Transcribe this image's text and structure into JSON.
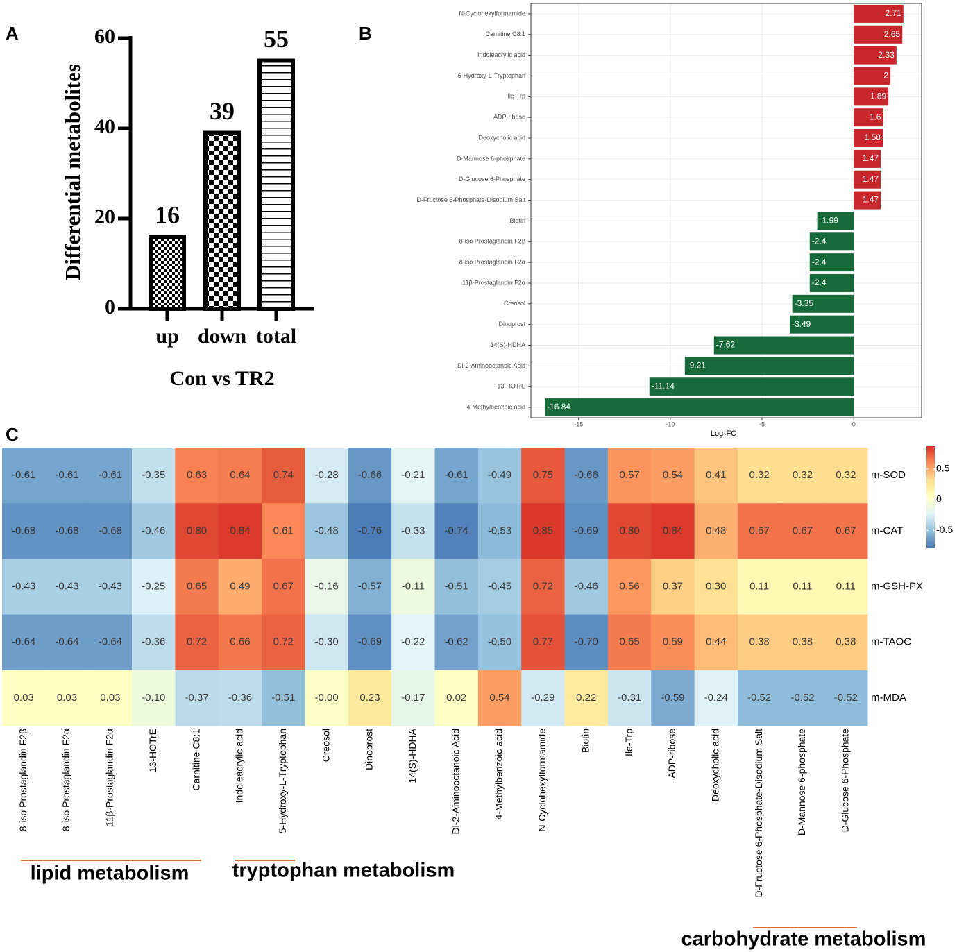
{
  "chart_data": [
    {
      "type": "bar",
      "panel": "A",
      "ylabel": "Differential metabolites",
      "xlabel": "Con vs TR2",
      "categories": [
        "up",
        "down",
        "total"
      ],
      "values": [
        16,
        39,
        55
      ],
      "color": "#000000",
      "ylim": [
        0,
        60
      ],
      "yticks": [
        0,
        20,
        40,
        60
      ]
    },
    {
      "type": "hbar",
      "panel": "B",
      "xlabel": "Log₂FC",
      "categories": [
        "N-Cyclohexylformamide",
        "Carnitine C8:1",
        "Indoleacrylic acid",
        "5-Hydroxy-L-Tryptophan",
        "Ile-Trp",
        "ADP-ribose",
        "Deoxycholic acid",
        "D-Mannose 6-phosphate",
        "D-Glucose 6-Phosphate",
        "D-Fructose 6-Phosphate-Disodium Salt",
        "Biotin",
        "8-iso Prostaglandin F2β",
        "8-iso Prostaglandin F2α",
        "11β-Prostaglandin F2α",
        "Creosol",
        "Dinoprost",
        "14(S)-HDHA",
        "Dl-2-Aminooctanoic Acid",
        "13-HOTrE",
        "4-Methylbenzoic acid"
      ],
      "values": [
        2.71,
        2.65,
        2.33,
        2,
        1.89,
        1.6,
        1.58,
        1.47,
        1.47,
        1.47,
        -1.99,
        -2.4,
        -2.4,
        -2.4,
        -3.35,
        -3.49,
        -7.62,
        -9.21,
        -11.14,
        -16.84
      ],
      "positive_color": "#c8262d",
      "negative_color": "#186a3b",
      "xlim": [
        -17.6,
        3.7
      ],
      "xticks": [
        -15,
        -10,
        -5,
        0
      ],
      "grid": true
    },
    {
      "type": "heatmap",
      "panel": "C",
      "categories": [
        "8-iso Prostaglandin F2β",
        "8-iso Prostaglandin F2α",
        "11β-Prostaglandin F2α",
        "13-HOTrE",
        "Carnitine C8:1",
        "Indoleacrylic acid",
        "5-Hydroxy-L-Tryptophan",
        "Creosol",
        "Dinoprost",
        "14(S)-HDHA",
        "Dl-2-Aminooctanoic Acid",
        "4-Methylbenzoic acid",
        "N-Cyclohexylformamide",
        "Biotin",
        "Ile-Trp",
        "ADP-ribose",
        "Deoxycholic acid",
        "D-Fructose 6-Phosphate-Disodium Salt",
        "D-Mannose 6-phosphate",
        "D-Glucose 6-Phosphate"
      ],
      "rows": [
        "m-SOD",
        "m-CAT",
        "m-GSH-PX",
        "m-TAOC",
        "m-MDA"
      ],
      "values": [
        [
          -0.61,
          -0.61,
          -0.61,
          -0.35,
          0.63,
          0.64,
          0.74,
          -0.28,
          -0.66,
          -0.21,
          -0.61,
          -0.49,
          0.75,
          -0.66,
          0.57,
          0.54,
          0.41,
          0.32,
          0.32,
          0.32
        ],
        [
          -0.68,
          -0.68,
          -0.68,
          -0.46,
          0.8,
          0.84,
          0.61,
          -0.48,
          -0.76,
          -0.33,
          -0.74,
          -0.53,
          0.85,
          -0.69,
          0.8,
          0.84,
          0.48,
          0.67,
          0.67,
          0.67
        ],
        [
          -0.43,
          -0.43,
          -0.43,
          -0.25,
          0.65,
          0.49,
          0.67,
          -0.16,
          -0.57,
          -0.11,
          -0.51,
          -0.45,
          0.72,
          -0.46,
          0.56,
          0.37,
          0.3,
          0.11,
          0.11,
          0.11
        ],
        [
          -0.64,
          -0.64,
          -0.64,
          -0.36,
          0.72,
          0.66,
          0.72,
          -0.3,
          -0.69,
          -0.22,
          -0.62,
          -0.5,
          0.77,
          -0.7,
          0.65,
          0.59,
          0.44,
          0.38,
          0.38,
          0.38
        ],
        [
          0.03,
          0.03,
          0.03,
          -0.1,
          -0.37,
          -0.36,
          -0.51,
          0,
          0.23,
          -0.17,
          0.02,
          0.54,
          -0.29,
          0.22,
          -0.31,
          -0.59,
          -0.24,
          -0.52,
          -0.52,
          -0.52
        ]
      ],
      "value_labels": [
        [
          "-0.61",
          "-0.61",
          "-0.61",
          "-0.35",
          "0.63",
          "0.64",
          "0.74",
          "-0.28",
          "-0.66",
          "-0.21",
          "-0.61",
          "-0.49",
          "0.75",
          "-0.66",
          "0.57",
          "0.54",
          "0.41",
          "0.32",
          "0.32",
          "0.32"
        ],
        [
          "-0.68",
          "-0.68",
          "-0.68",
          "-0.46",
          "0.80",
          "0.84",
          "0.61",
          "-0.48",
          "-0.76",
          "-0.33",
          "-0.74",
          "-0.53",
          "0.85",
          "-0.69",
          "0.80",
          "0.84",
          "0.48",
          "0.67",
          "0.67",
          "0.67"
        ],
        [
          "-0.43",
          "-0.43",
          "-0.43",
          "-0.25",
          "0.65",
          "0.49",
          "0.67",
          "-0.16",
          "-0.57",
          "-0.11",
          "-0.51",
          "-0.45",
          "0.72",
          "-0.46",
          "0.56",
          "0.37",
          "0.30",
          "0.11",
          "0.11",
          "0.11"
        ],
        [
          "-0.64",
          "-0.64",
          "-0.64",
          "-0.36",
          "0.72",
          "0.66",
          "0.72",
          "-0.30",
          "-0.69",
          "-0.22",
          "-0.62",
          "-0.50",
          "0.77",
          "-0.70",
          "0.65",
          "0.59",
          "0.44",
          "0.38",
          "0.38",
          "0.38"
        ],
        [
          "0.03",
          "0.03",
          "0.03",
          "-0.10",
          "-0.37",
          "-0.36",
          "-0.51",
          "-0.00",
          "0.23",
          "-0.17",
          "0.02",
          "0.54",
          "-0.29",
          "0.22",
          "-0.31",
          "-0.59",
          "-0.24",
          "-0.52",
          "-0.52",
          "-0.52"
        ]
      ],
      "colors": [
        "#4575b4",
        "#91bfdb",
        "#e0f3f8",
        "#ffffbf",
        "#fee090",
        "#fc8d59",
        "#d73027"
      ],
      "zlim": [
        -0.79,
        0.87
      ],
      "zticks": [
        -0.5,
        0,
        0.5
      ],
      "annotations": [
        "lipid metabolism",
        "tryptophan metabolism",
        "carbohydrate metabolism"
      ]
    }
  ]
}
